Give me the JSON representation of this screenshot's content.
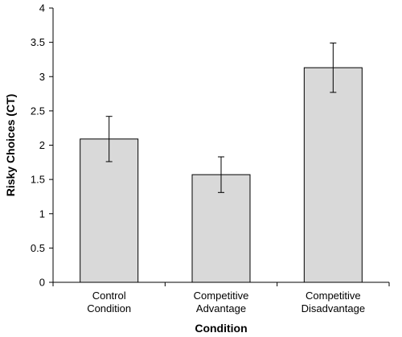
{
  "chart_data": {
    "type": "bar",
    "xlabel": "Condition",
    "ylabel": "Risky Choices (CT)",
    "categories": [
      [
        "Control",
        "Condition"
      ],
      [
        "Competitive",
        "Advantage"
      ],
      [
        "Competitive",
        "Disadvantage"
      ]
    ],
    "values": [
      2.09,
      1.57,
      3.13
    ],
    "error": [
      0.33,
      0.26,
      0.36
    ],
    "ylim": [
      0,
      4
    ],
    "yticks": [
      "0",
      "0.5",
      "1",
      "1.5",
      "2",
      "2.5",
      "3",
      "3.5",
      "4"
    ],
    "grid": false,
    "bar_color": "#d9d9d9"
  }
}
